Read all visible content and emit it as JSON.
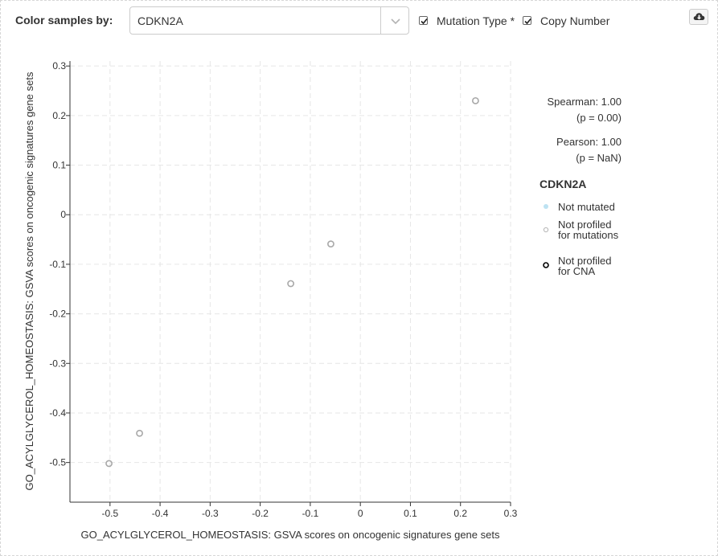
{
  "toolbar": {
    "color_label": "Color samples by:",
    "selected_gene": "CDKN2A",
    "mutation_type_label": "Mutation Type *",
    "copy_number_label": "Copy Number",
    "mutation_type_checked": true,
    "copy_number_checked": true,
    "download_icon": "cloud-download-icon"
  },
  "stats": {
    "spearman": "Spearman: 1.00",
    "spearman_p": "(p = 0.00)",
    "pearson": "Pearson: 1.00",
    "pearson_p": "(p = NaN)"
  },
  "legend": {
    "title": "CDKN2A",
    "items": [
      {
        "line1": "Not mutated",
        "line2": "",
        "marker": "dot",
        "color": "#bde2f2"
      },
      {
        "line1": "Not profiled",
        "line2": "for mutations",
        "marker": "ring-light",
        "color": "#b5b5b5"
      },
      {
        "line1": "Not profiled",
        "line2": "for CNA",
        "marker": "ring-dark",
        "color": "#000000"
      }
    ]
  },
  "chart_data": {
    "type": "scatter",
    "xlabel": "GO_ACYLGLYCEROL_HOMEOSTASIS: GSVA scores on oncogenic signatures gene sets",
    "ylabel": "GO_ACYLGLYCEROL_HOMEOSTASIS: GSVA scores on oncogenic signatures gene sets",
    "xlim": [
      -0.58,
      0.3
    ],
    "ylim": [
      -0.58,
      0.31
    ],
    "xticks": [
      -0.5,
      -0.4,
      -0.3,
      -0.2,
      -0.1,
      0,
      0.1,
      0.2,
      0.3
    ],
    "yticks": [
      -0.5,
      -0.4,
      -0.3,
      -0.2,
      -0.1,
      0,
      0.1,
      0.2,
      0.3
    ],
    "xtick_labels": [
      "-0.5",
      "-0.4",
      "-0.3",
      "-0.2",
      "-0.1",
      "0",
      "0.1",
      "0.2",
      "0.3"
    ],
    "ytick_labels": [
      "-0.5",
      "-0.4",
      "-0.3",
      "-0.2",
      "-0.1",
      "0",
      "0.1",
      "0.2",
      "0.3"
    ],
    "grid": true,
    "points": [
      {
        "x": -0.502,
        "y": -0.502
      },
      {
        "x": -0.441,
        "y": -0.441
      },
      {
        "x": -0.139,
        "y": -0.139
      },
      {
        "x": -0.059,
        "y": -0.059
      },
      {
        "x": 0.23,
        "y": 0.23
      }
    ],
    "point_color": "#a8a8a8"
  }
}
